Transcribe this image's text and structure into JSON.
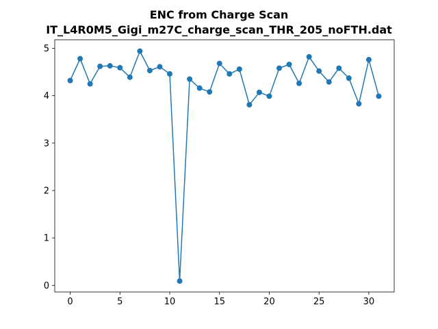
{
  "chart_data": {
    "type": "line",
    "title": [
      "ENC from Charge Scan",
      "IT_L4R0M5_Gigi_m27C_charge_scan_THR_205_noFTH.dat"
    ],
    "xlabel": "",
    "ylabel": "",
    "xlim": [
      -1.55,
      32.55
    ],
    "ylim": [
      -0.14,
      5.18
    ],
    "xticks": [
      0,
      5,
      10,
      15,
      20,
      25,
      30
    ],
    "yticks": [
      0,
      1,
      2,
      3,
      4,
      5
    ],
    "grid": false,
    "color": "#1f77b4",
    "marker": "circle",
    "series": [
      {
        "x": [
          0,
          1,
          2,
          3,
          4,
          5,
          6,
          7,
          8,
          9,
          10,
          11,
          12,
          13,
          14,
          15,
          16,
          17,
          18,
          19,
          20,
          21,
          22,
          23,
          24,
          25,
          26,
          27,
          28,
          29,
          30,
          31
        ],
        "y": [
          4.32,
          4.78,
          4.25,
          4.62,
          4.63,
          4.59,
          4.39,
          4.94,
          4.53,
          4.61,
          4.46,
          0.09,
          4.35,
          4.16,
          4.08,
          4.68,
          4.46,
          4.56,
          3.81,
          4.07,
          3.99,
          4.58,
          4.66,
          4.26,
          4.82,
          4.52,
          4.29,
          4.58,
          4.37,
          3.83,
          4.76,
          3.99
        ]
      }
    ]
  }
}
